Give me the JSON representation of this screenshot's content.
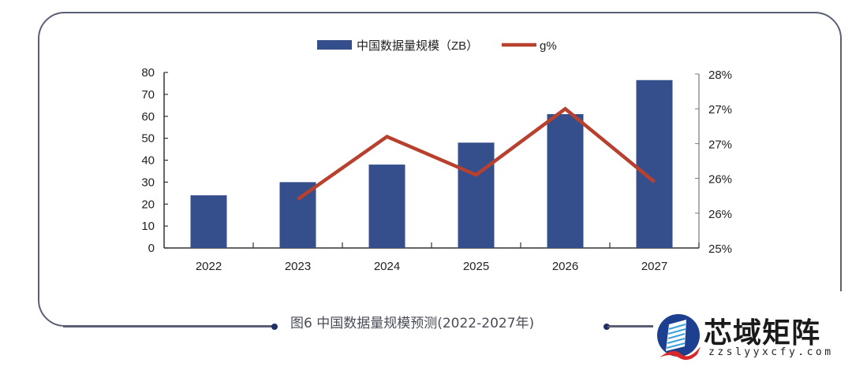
{
  "chart_data": {
    "type": "bar",
    "title": "",
    "categories": [
      "2022",
      "2023",
      "2024",
      "2025",
      "2026",
      "2027"
    ],
    "series": [
      {
        "name": "中国数据量规模（ZB）",
        "type": "bar",
        "axis": "left",
        "color": "#344f8c",
        "values": [
          24,
          30,
          38,
          48,
          61,
          76.5
        ]
      },
      {
        "name": "g%",
        "type": "line",
        "axis": "right",
        "color": "#b7402f",
        "values": [
          null,
          25.7,
          26.6,
          26.05,
          27.0,
          25.95
        ]
      }
    ],
    "left_axis": {
      "ylim": [
        0,
        80
      ],
      "ticks": [
        "0",
        "10",
        "20",
        "30",
        "40",
        "50",
        "60",
        "70",
        "80"
      ]
    },
    "right_axis": {
      "ylim": [
        25,
        27.5
      ],
      "ticks": [
        "25%",
        "26%",
        "26%",
        "27%",
        "27%",
        "28%"
      ]
    },
    "xlabel": "",
    "ylabel": "",
    "legend_position": "top",
    "grid": false
  },
  "legend": {
    "bar_label": "中国数据量规模（ZB）",
    "line_label": "g%"
  },
  "caption": "图6  中国数据量规模预测(2022-2027年)",
  "logo": {
    "name": "芯域矩阵",
    "url": "zzslyyxcfy.com"
  }
}
